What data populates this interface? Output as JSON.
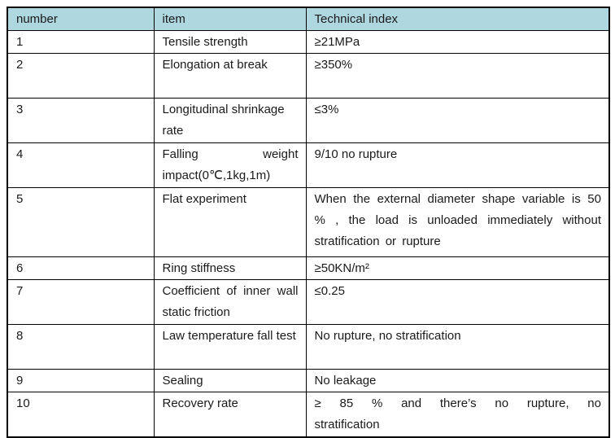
{
  "table": {
    "header_bg": "#afd7e0",
    "border_color": "#000000",
    "columns": [
      "number",
      "item",
      "Technical index"
    ],
    "rows": [
      {
        "number": "1",
        "item": "Tensile strength",
        "index": "≥21MPa"
      },
      {
        "number": "2",
        "item": "Elongation at break",
        "index": "≥350%"
      },
      {
        "number": "3",
        "item": "Longitudinal shrinkage rate",
        "index": "≤3%"
      },
      {
        "number": "4",
        "item": "Falling weight impact(0℃,1kg,1m)",
        "index": "9/10 no rupture"
      },
      {
        "number": "5",
        "item": "Flat experiment",
        "index": "When the external diameter shape variable is 50 % , the load is unloaded immediately without stratification or rupture"
      },
      {
        "number": "6",
        "item": "Ring stiffness",
        "index": "≥50KN/m²"
      },
      {
        "number": "7",
        "item": "Coefficient of inner wall static friction",
        "index": "≤0.25"
      },
      {
        "number": "8",
        "item": "Law temperature fall test",
        "index": "No rupture, no stratification"
      },
      {
        "number": "9",
        "item": "Sealing",
        "index": "No leakage"
      },
      {
        "number": "10",
        "item": "Recovery rate",
        "index": "≥ 85 % and there’s no rupture, no stratification"
      }
    ]
  }
}
